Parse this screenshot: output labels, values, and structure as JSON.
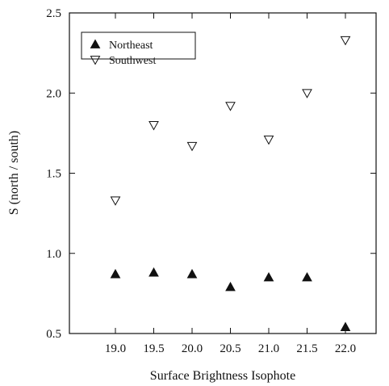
{
  "chart_data": {
    "type": "scatter",
    "xlabel": "Surface Brightness Isophote",
    "ylabel": "S  (north / south)",
    "xlim": [
      18.4,
      22.4
    ],
    "ylim": [
      0.5,
      2.5
    ],
    "x_ticks": [
      19.0,
      19.5,
      20.0,
      20.5,
      21.0,
      21.5,
      22.0
    ],
    "x_tick_labels": [
      "19.0",
      "19.5",
      "20.0",
      "20.5",
      "21.0",
      "21.5",
      "22.0"
    ],
    "y_ticks": [
      0.5,
      1.0,
      1.5,
      2.0,
      2.5
    ],
    "y_tick_labels": [
      "0.5",
      "1.0",
      "1.5",
      "2.0",
      "2.5"
    ],
    "grid": false,
    "legend_position": "top-left",
    "series": [
      {
        "name": "Northeast",
        "marker": "filled-triangle-up",
        "color": "#111111",
        "x": [
          19.0,
          19.5,
          20.0,
          20.5,
          21.0,
          21.5,
          22.0
        ],
        "y": [
          0.87,
          0.88,
          0.87,
          0.79,
          0.85,
          0.85,
          0.54
        ]
      },
      {
        "name": "Southwest",
        "marker": "open-triangle-down",
        "color": "#111111",
        "x": [
          19.0,
          19.5,
          20.0,
          20.5,
          21.0,
          21.5,
          22.0
        ],
        "y": [
          1.33,
          1.8,
          1.67,
          1.92,
          1.71,
          2.0,
          2.33
        ]
      }
    ]
  }
}
